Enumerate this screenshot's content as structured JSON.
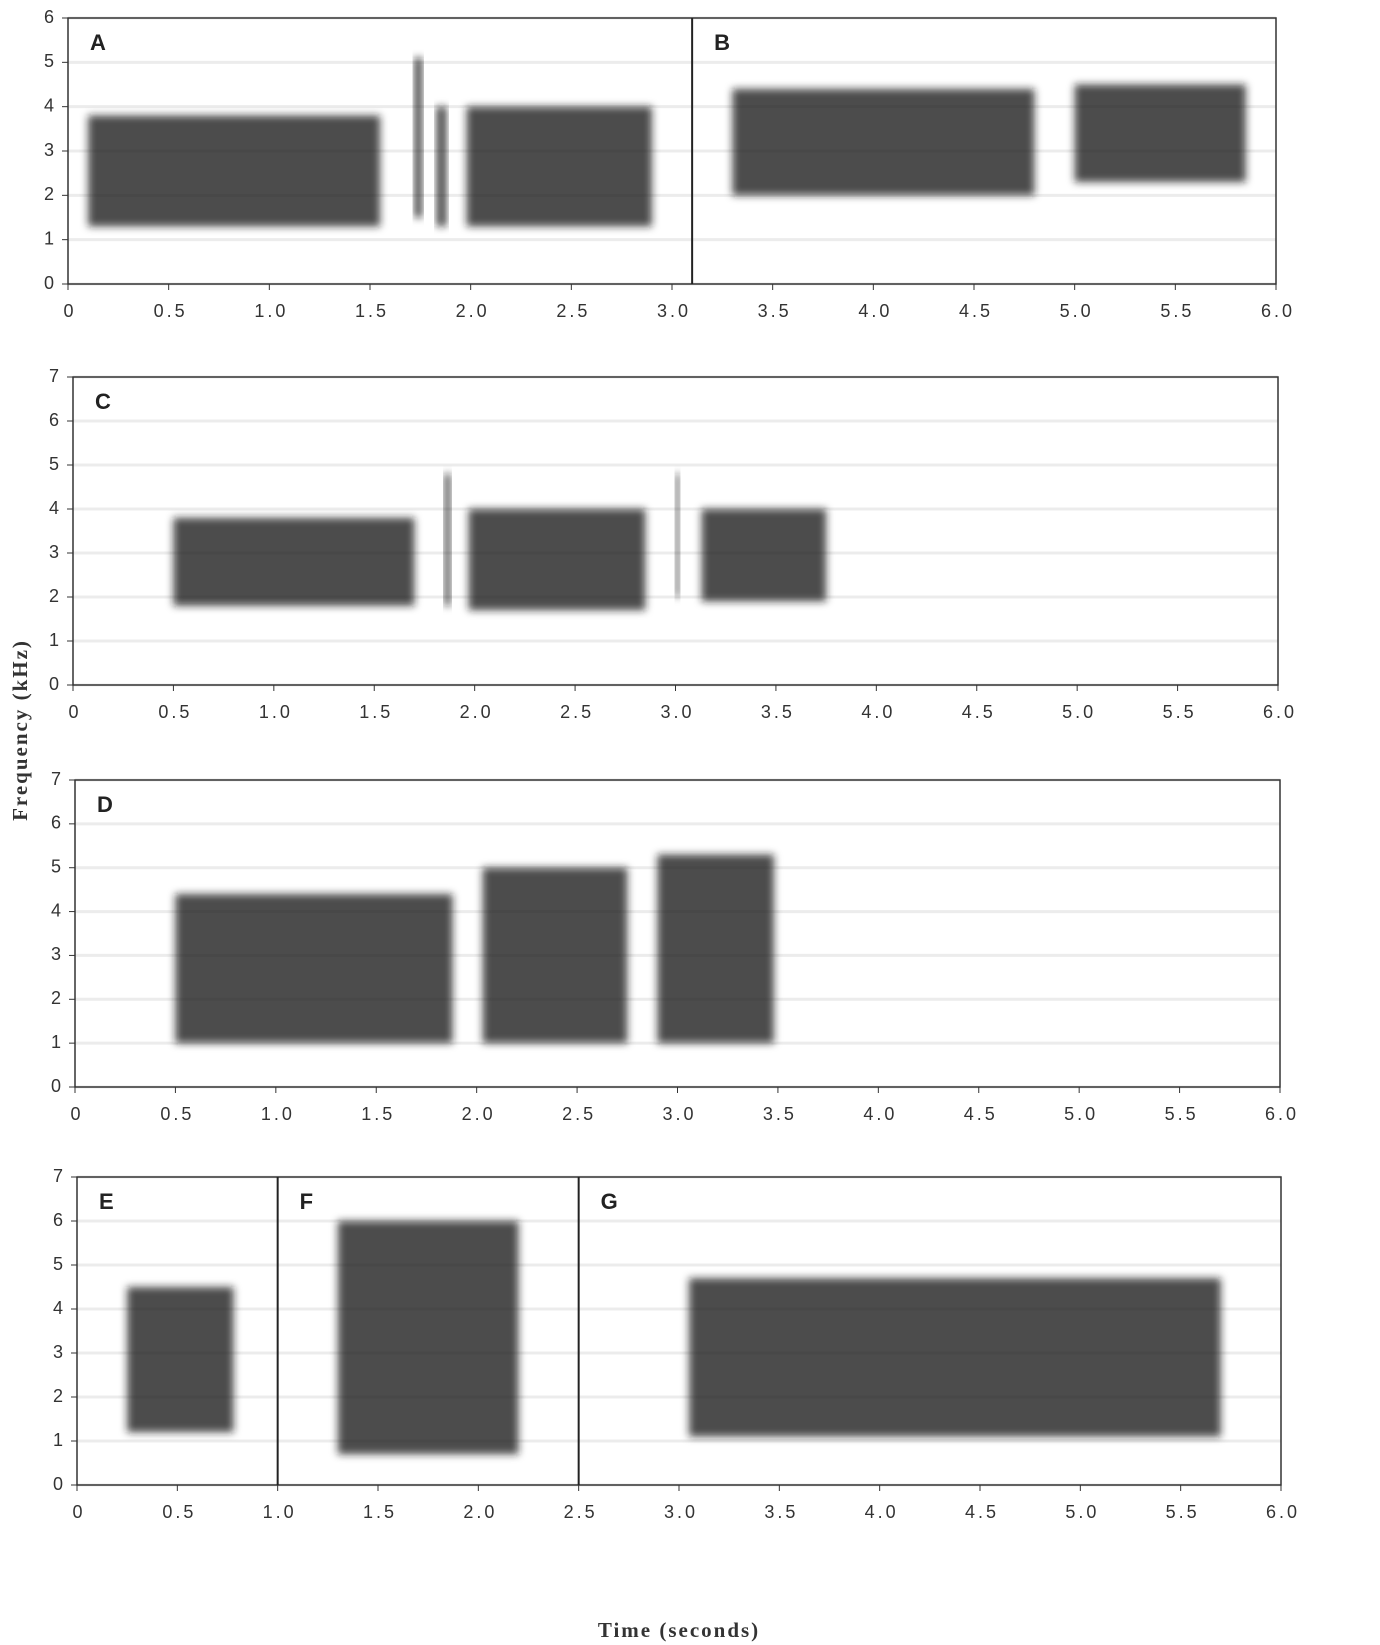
{
  "chart_data": [
    {
      "type": "spectrogram",
      "xlim": [
        0,
        6
      ],
      "ylim": [
        0,
        6
      ],
      "xticks": [
        0,
        0.5,
        {
          "value": 1,
          "label": "1.0"
        },
        1.5,
        {
          "value": 2,
          "label": "2.0"
        },
        2.5,
        {
          "value": 3,
          "label": "3.0"
        },
        3.5,
        {
          "value": 4,
          "label": "4.0"
        },
        4.5,
        {
          "value": 5,
          "label": "5.0"
        },
        5.5,
        {
          "value": 6,
          "label": "6.0"
        }
      ],
      "yticks": [
        0,
        1,
        2,
        3,
        4,
        5,
        6
      ],
      "grid": true,
      "panels": [
        "A",
        "B"
      ],
      "dividers": [
        3.1
      ],
      "bands": [
        {
          "x": [
            0.1,
            1.55
          ],
          "y": [
            1.3,
            3.8
          ]
        },
        {
          "x": [
            1.72,
            1.76
          ],
          "y": [
            1.5,
            5.1
          ]
        },
        {
          "x": [
            1.83,
            1.88
          ],
          "y": [
            1.3,
            4.0
          ]
        },
        {
          "x": [
            1.98,
            2.9
          ],
          "y": [
            1.3,
            4.0
          ]
        },
        {
          "x": [
            3.3,
            4.8
          ],
          "y": [
            2.0,
            4.4
          ]
        },
        {
          "x": [
            5.0,
            5.85
          ],
          "y": [
            2.3,
            4.5
          ]
        }
      ]
    },
    {
      "type": "spectrogram",
      "xlim": [
        0,
        6
      ],
      "ylim": [
        0,
        7
      ],
      "xticks": [
        0,
        0.5,
        {
          "value": 1,
          "label": "1.0"
        },
        1.5,
        {
          "value": 2,
          "label": "2.0"
        },
        2.5,
        {
          "value": 3,
          "label": "3.0"
        },
        3.5,
        {
          "value": 4,
          "label": "4.0"
        },
        4.5,
        {
          "value": 5,
          "label": "5.0"
        },
        5.5,
        {
          "value": 6,
          "label": "6.0"
        }
      ],
      "yticks": [
        0,
        1,
        2,
        3,
        4,
        5,
        6,
        7
      ],
      "grid": true,
      "panels": [
        "C"
      ],
      "dividers": [],
      "ylabel": "Frequency (kHz)",
      "bands": [
        {
          "x": [
            0.5,
            1.7
          ],
          "y": [
            1.8,
            3.8
          ]
        },
        {
          "x": [
            1.85,
            1.88
          ],
          "y": [
            1.8,
            4.8
          ]
        },
        {
          "x": [
            1.97,
            2.85
          ],
          "y": [
            1.7,
            4.0
          ]
        },
        {
          "x": [
            3.0,
            3.02
          ],
          "y": [
            2.0,
            4.8
          ]
        },
        {
          "x": [
            3.13,
            3.75
          ],
          "y": [
            1.9,
            4.0
          ]
        }
      ]
    },
    {
      "type": "spectrogram",
      "xlim": [
        0,
        6
      ],
      "ylim": [
        0,
        7
      ],
      "xticks": [
        0,
        0.5,
        {
          "value": 1,
          "label": "1.0"
        },
        1.5,
        {
          "value": 2,
          "label": "2.0"
        },
        2.5,
        {
          "value": 3,
          "label": "3.0"
        },
        3.5,
        {
          "value": 4,
          "label": "4.0"
        },
        4.5,
        {
          "value": 5,
          "label": "5.0"
        },
        5.5,
        {
          "value": 6,
          "label": "6.0"
        }
      ],
      "yticks": [
        0,
        1,
        2,
        3,
        4,
        5,
        6,
        7
      ],
      "grid": true,
      "panels": [
        "D"
      ],
      "dividers": [],
      "bands": [
        {
          "x": [
            0.5,
            1.88
          ],
          "y": [
            1.0,
            4.4
          ]
        },
        {
          "x": [
            2.03,
            2.75
          ],
          "y": [
            1.0,
            5.0
          ]
        },
        {
          "x": [
            2.9,
            3.48
          ],
          "y": [
            1.0,
            5.3
          ]
        }
      ]
    },
    {
      "type": "spectrogram",
      "xlim": [
        0,
        6
      ],
      "ylim": [
        0,
        7
      ],
      "xticks": [
        0,
        0.5,
        {
          "value": 1,
          "label": "1.0"
        },
        1.5,
        {
          "value": 2,
          "label": "2.0"
        },
        2.5,
        {
          "value": 3,
          "label": "3.0"
        },
        3.5,
        {
          "value": 4,
          "label": "4.0"
        },
        4.5,
        {
          "value": 5,
          "label": "5.0"
        },
        5.5,
        {
          "value": 6,
          "label": "6.0"
        }
      ],
      "yticks": [
        0,
        1,
        2,
        3,
        4,
        5,
        6,
        7
      ],
      "grid": true,
      "panels": [
        "E",
        "F",
        "G"
      ],
      "dividers": [
        1.0,
        2.5
      ],
      "xlabel": "Time (seconds)",
      "bands": [
        {
          "x": [
            0.25,
            0.78
          ],
          "y": [
            1.2,
            4.5
          ]
        },
        {
          "x": [
            1.3,
            2.2
          ],
          "y": [
            0.7,
            6.0
          ]
        },
        {
          "x": [
            3.05,
            5.7
          ],
          "y": [
            1.1,
            4.7
          ]
        }
      ]
    }
  ]
}
